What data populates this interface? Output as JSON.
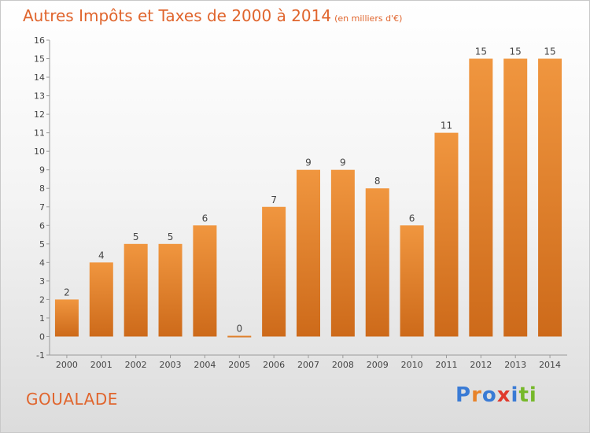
{
  "title": "Autres Impôts et Taxes de 2000 à 2014",
  "unit_note": "(en milliers d'€)",
  "commune": "GOUALADE",
  "logo": {
    "text": "Proxiti",
    "letters": [
      "P",
      "r",
      "o",
      "x",
      "i",
      "t",
      "i"
    ],
    "colors": [
      "#3a7bd5",
      "#e8832a",
      "#3a7bd5",
      "#e03a2d",
      "#3a7bd5",
      "#76b82a",
      "#76b82a"
    ]
  },
  "colors": {
    "bar": "#f0963f",
    "bar_dark": "#cd6a1a",
    "title": "#e0652d"
  },
  "chart_data": {
    "type": "bar",
    "categories": [
      "2000",
      "2001",
      "2002",
      "2003",
      "2004",
      "2005",
      "2006",
      "2007",
      "2008",
      "2009",
      "2010",
      "2011",
      "2012",
      "2013",
      "2014"
    ],
    "values": [
      2,
      4,
      5,
      5,
      6,
      0,
      7,
      9,
      9,
      8,
      6,
      11,
      15,
      15,
      15
    ],
    "ylim": [
      -1,
      16
    ],
    "yticks": [
      -1,
      0,
      1,
      2,
      3,
      4,
      5,
      6,
      7,
      8,
      9,
      10,
      11,
      12,
      13,
      14,
      15,
      16
    ],
    "xlabel": "",
    "ylabel": "",
    "grid": false,
    "data_labels": true
  }
}
